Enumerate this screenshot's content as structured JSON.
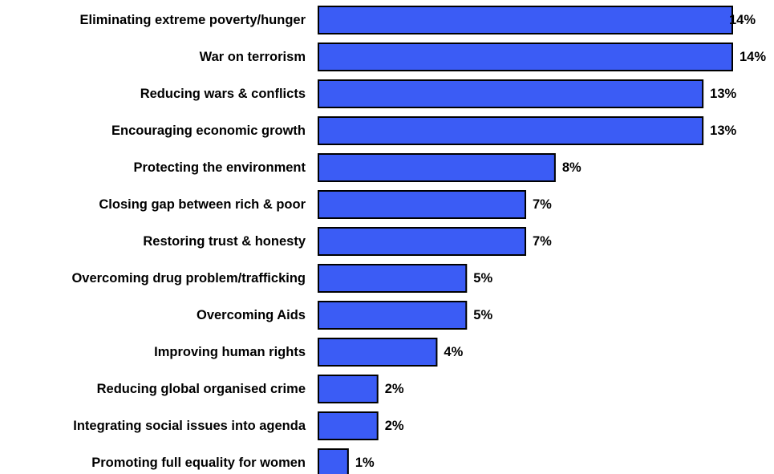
{
  "chart_data": {
    "type": "bar",
    "orientation": "horizontal",
    "categories": [
      "Eliminating extreme poverty/hunger",
      "War on terrorism",
      "Reducing wars & conflicts",
      "Encouraging economic growth",
      "Protecting the environment",
      "Closing gap between rich & poor",
      "Restoring trust & honesty",
      "Overcoming drug problem/trafficking",
      "Overcoming Aids",
      "Improving human rights",
      "Reducing global organised crime",
      "Integrating social issues into agenda",
      "Promoting full equality for women"
    ],
    "values": [
      14,
      14,
      13,
      13,
      8,
      7,
      7,
      5,
      5,
      4,
      2,
      2,
      1
    ],
    "value_labels": [
      "14%",
      "14%",
      "13%",
      "13%",
      "8%",
      "7%",
      "7%",
      "5%",
      "5%",
      "4%",
      "2%",
      "2%",
      "1%"
    ],
    "title": "",
    "xlabel": "",
    "ylabel": "",
    "xlim": [
      0,
      14
    ],
    "grid": false,
    "legend": "none",
    "colors": {
      "bar": "#3b5cf5",
      "outline": "#000000"
    }
  }
}
